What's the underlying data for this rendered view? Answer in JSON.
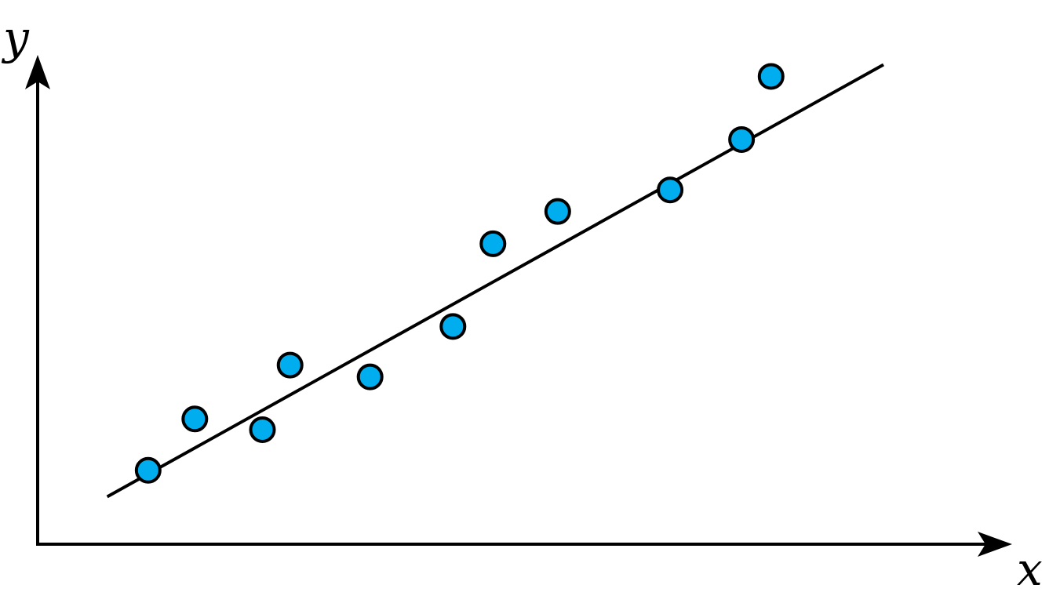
{
  "chart_data": {
    "type": "scatter",
    "title": "",
    "xlabel": "x",
    "ylabel": "y",
    "grid": false,
    "xlim": [
      0,
      100
    ],
    "ylim": [
      0,
      100
    ],
    "point_color": "#00aeef",
    "point_stroke_color": "#000000",
    "line_color": "#000000",
    "axis_color": "#000000",
    "points": [
      {
        "x": 11.6,
        "y": 15.1
      },
      {
        "x": 16.5,
        "y": 25.6
      },
      {
        "x": 23.6,
        "y": 23.4
      },
      {
        "x": 26.5,
        "y": 36.6
      },
      {
        "x": 34.9,
        "y": 34.2
      },
      {
        "x": 43.6,
        "y": 44.5
      },
      {
        "x": 47.8,
        "y": 61.4
      },
      {
        "x": 54.6,
        "y": 68.0
      },
      {
        "x": 66.4,
        "y": 72.4
      },
      {
        "x": 73.9,
        "y": 82.7
      },
      {
        "x": 77.0,
        "y": 95.6
      }
    ],
    "trend_line": {
      "x": [
        7.3,
        88.8
      ],
      "y": [
        9.7,
        98.0
      ]
    }
  }
}
